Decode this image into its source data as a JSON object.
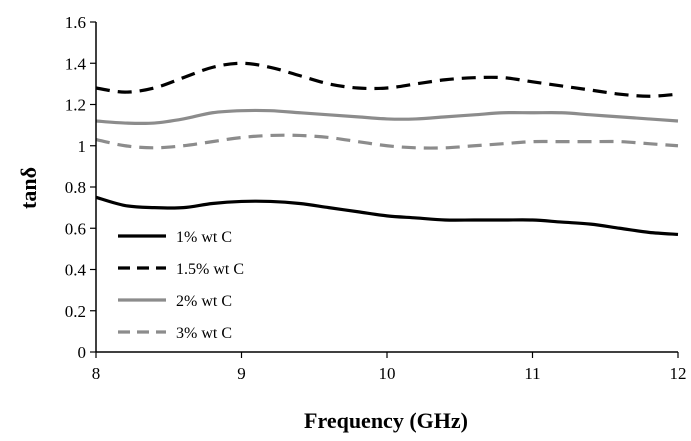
{
  "chart_data": {
    "type": "line",
    "xlabel": "Frequency (GHz)",
    "ylabel": "tanδ",
    "xlim": [
      8,
      12
    ],
    "ylim": [
      0,
      1.6
    ],
    "xticks": [
      8,
      9,
      10,
      11,
      12
    ],
    "yticks": [
      0,
      0.2,
      0.4,
      0.6,
      0.8,
      1,
      1.2,
      1.4,
      1.6
    ],
    "xtick_labels": [
      "8",
      "9",
      "10",
      "11",
      "12"
    ],
    "ytick_labels": [
      "0",
      "0.2",
      "0.4",
      "0.6",
      "0.8",
      "1",
      "1.2",
      "1.4",
      "1.6"
    ],
    "grid": false,
    "legend_position": "bottom-left",
    "x": [
      8,
      8.2,
      8.4,
      8.6,
      8.8,
      9,
      9.2,
      9.4,
      9.6,
      9.8,
      10,
      10.2,
      10.4,
      10.6,
      10.8,
      11,
      11.2,
      11.4,
      11.6,
      11.8,
      12
    ],
    "series": [
      {
        "name": "1% wt C",
        "color": "#000000",
        "dash": "solid",
        "values": [
          0.75,
          0.71,
          0.7,
          0.7,
          0.72,
          0.73,
          0.73,
          0.72,
          0.7,
          0.68,
          0.66,
          0.65,
          0.64,
          0.64,
          0.64,
          0.64,
          0.63,
          0.62,
          0.6,
          0.58,
          0.57
        ]
      },
      {
        "name": "1.5% wt C",
        "color": "#000000",
        "dash": "dashed",
        "values": [
          1.28,
          1.26,
          1.28,
          1.33,
          1.38,
          1.4,
          1.38,
          1.34,
          1.3,
          1.28,
          1.28,
          1.3,
          1.32,
          1.33,
          1.33,
          1.31,
          1.29,
          1.27,
          1.25,
          1.24,
          1.25
        ]
      },
      {
        "name": "2% wt C",
        "color": "#8c8c8c",
        "dash": "solid",
        "values": [
          1.12,
          1.11,
          1.11,
          1.13,
          1.16,
          1.17,
          1.17,
          1.16,
          1.15,
          1.14,
          1.13,
          1.13,
          1.14,
          1.15,
          1.16,
          1.16,
          1.16,
          1.15,
          1.14,
          1.13,
          1.12
        ]
      },
      {
        "name": "3% wt C",
        "color": "#8c8c8c",
        "dash": "dashed",
        "values": [
          1.03,
          1.0,
          0.99,
          1.0,
          1.02,
          1.04,
          1.05,
          1.05,
          1.04,
          1.02,
          1.0,
          0.99,
          0.99,
          1.0,
          1.01,
          1.02,
          1.02,
          1.02,
          1.02,
          1.01,
          1.0
        ]
      }
    ]
  }
}
